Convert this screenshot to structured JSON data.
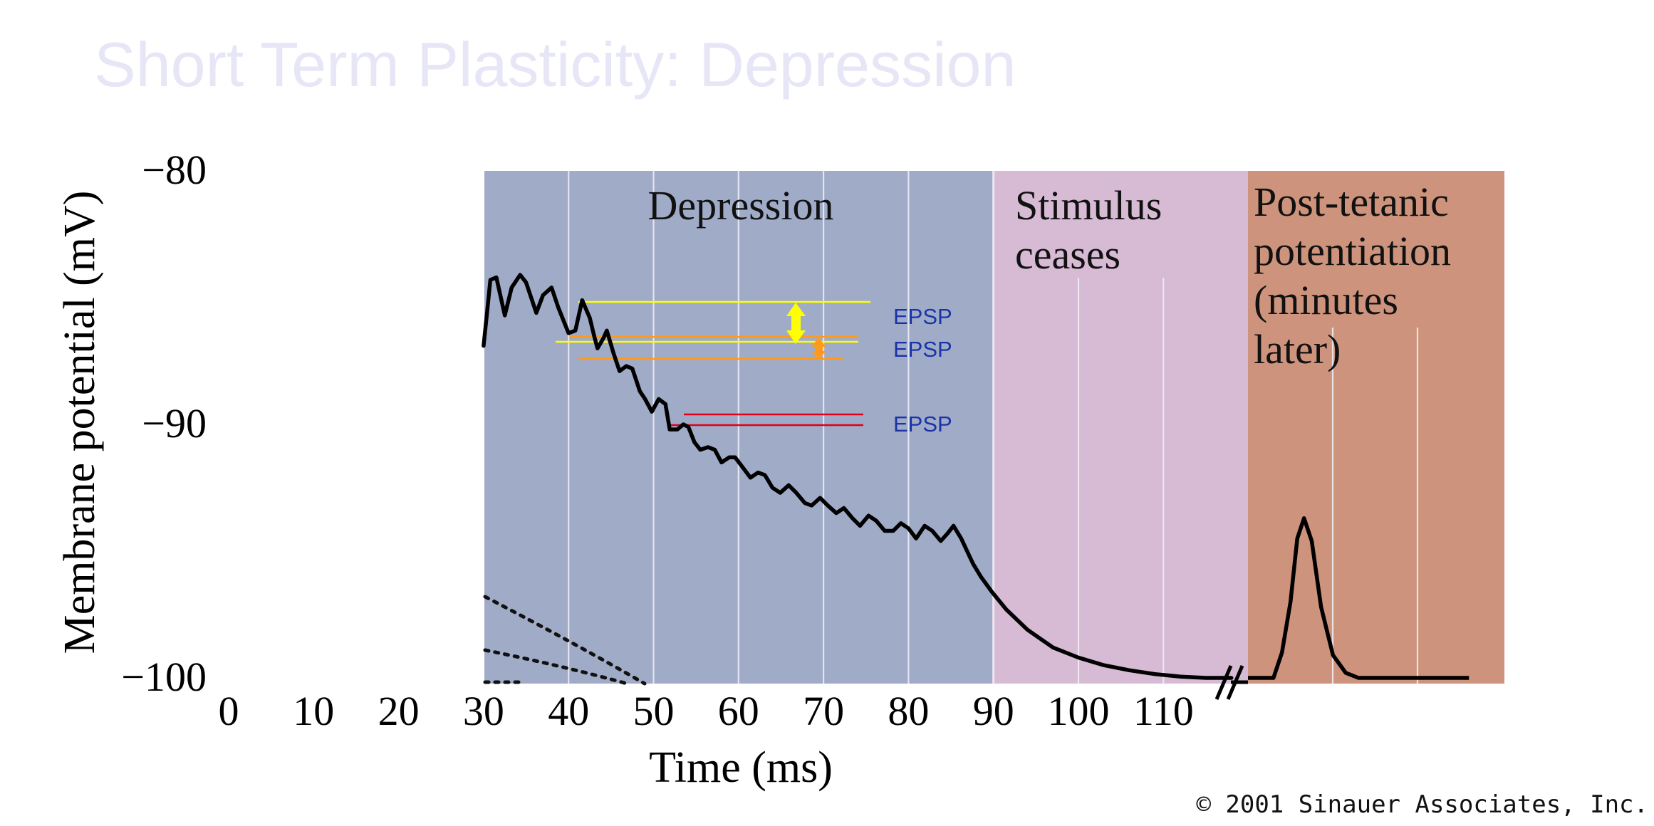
{
  "slide": {
    "title": "Short Term Plasticity: Depression",
    "copyright": "© 2001 Sinauer Associates, Inc."
  },
  "colors": {
    "depression_bg": "#a0abc8",
    "stimulus_bg": "#d7bad4",
    "ptp_bg": "#cd937c",
    "trace": "#000000",
    "epsp_yellow": "#ffff00",
    "epsp_orange": "#ff9a1a",
    "epsp_red": "#e0001a",
    "epsp_label": "#1a33a8",
    "title": "#e6e6f7"
  },
  "chart_data": {
    "type": "line",
    "title": "",
    "xlabel": "Time (ms)",
    "ylabel": "Membrane potential (mV)",
    "xlim": [
      0,
      118
    ],
    "ylim": [
      -100,
      -80
    ],
    "x_ticks": [
      "0",
      "10",
      "20",
      "30",
      "40",
      "50",
      "60",
      "70",
      "80",
      "90",
      "100",
      "110"
    ],
    "y_ticks": [
      "−80",
      "−90",
      "−100"
    ],
    "regions": [
      {
        "label_lines": [
          "Depression"
        ],
        "x_start": 30,
        "x_end": 90,
        "color_key": "depression_bg"
      },
      {
        "label_lines": [
          "Stimulus",
          "ceases"
        ],
        "x_start": 90,
        "x_end": 120,
        "color_key": "stimulus_bg"
      },
      {
        "label_lines": [
          "Post-tetanic",
          "potentiation",
          "(minutes",
          "later)"
        ],
        "x_start": 120,
        "x_end": 150,
        "color_key": "ptp_bg"
      }
    ],
    "series": [
      {
        "x": [
          30,
          30.4,
          30.8,
          31.5,
          32.5,
          33.3,
          34.3,
          35.0,
          36.2,
          37.0,
          38.0,
          38.8,
          40.0,
          40.8,
          41.6,
          42.5,
          43.0,
          43.4,
          44.1,
          44.5,
          45.3,
          46.0,
          46.8,
          47.5,
          48.4,
          49.0,
          49.8,
          50.6,
          51.4,
          51.9,
          52.8,
          53.5,
          54.1,
          54.8,
          55.5,
          56.4,
          57.2,
          58.0,
          58.9,
          59.6,
          60.5,
          61.4,
          62.3,
          63.1,
          64.0,
          64.9,
          65.9,
          66.8,
          67.8,
          68.6,
          69.6,
          70.5,
          71.5,
          72.4,
          73.4,
          74.3,
          75.3,
          76.2,
          77.2,
          78.2,
          79.1,
          80.0,
          80.9,
          81.9,
          82.8,
          83.8,
          84.6,
          85.3,
          86.2,
          86.9,
          87.6,
          88.5,
          89.8,
          91.5,
          94.0,
          97.0,
          100.0,
          103.0,
          106.0,
          109.0,
          112.0,
          115.0,
          118.0
        ],
        "y": [
          -86.9,
          -85.6,
          -84.3,
          -84.2,
          -85.7,
          -84.6,
          -84.1,
          -84.4,
          -85.6,
          -84.9,
          -84.6,
          -85.4,
          -86.4,
          -86.3,
          -85.1,
          -85.8,
          -86.5,
          -87.0,
          -86.6,
          -86.3,
          -87.2,
          -87.9,
          -87.7,
          -87.8,
          -88.7,
          -89.0,
          -89.5,
          -89.0,
          -89.2,
          -90.2,
          -90.2,
          -90.0,
          -90.1,
          -90.7,
          -91.0,
          -90.9,
          -91.0,
          -91.5,
          -91.3,
          -91.3,
          -91.7,
          -92.1,
          -91.9,
          -92.0,
          -92.5,
          -92.7,
          -92.4,
          -92.7,
          -93.1,
          -93.2,
          -92.9,
          -93.2,
          -93.5,
          -93.3,
          -93.7,
          -94.0,
          -93.6,
          -93.8,
          -94.2,
          -94.2,
          -93.9,
          -94.1,
          -94.5,
          -94.0,
          -94.2,
          -94.6,
          -94.3,
          -94.0,
          -94.5,
          -95.0,
          -95.5,
          -96.0,
          -96.6,
          -97.3,
          -98.1,
          -98.8,
          -99.2,
          -99.5,
          -99.7,
          -99.85,
          -99.95,
          -100.0,
          -100.0
        ]
      },
      {
        "name": "",
        "kind": "ptp_potential_mV",
        "points": [
          [
            0,
            -100.0
          ],
          [
            3,
            -100.0
          ],
          [
            4,
            -99.0
          ],
          [
            5,
            -97.0
          ],
          [
            5.8,
            -94.5
          ],
          [
            6.6,
            -93.7
          ],
          [
            7.5,
            -94.6
          ],
          [
            8.6,
            -97.2
          ],
          [
            10,
            -99.1
          ],
          [
            11.5,
            -99.8
          ],
          [
            13,
            -100.0
          ],
          [
            26,
            -100.0
          ]
        ]
      }
    ],
    "annotations": [
      {
        "text": "EPSP",
        "color_key": "epsp_yellow"
      },
      {
        "text": "EPSP",
        "color_key": "epsp_orange"
      },
      {
        "text": "EPSP",
        "color_key": "epsp_red"
      }
    ]
  }
}
